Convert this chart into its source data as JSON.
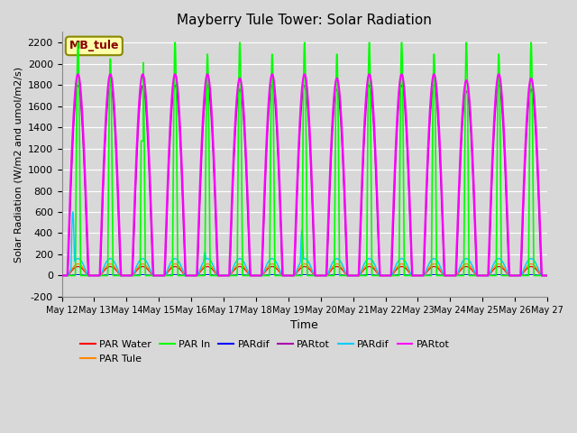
{
  "title": "Mayberry Tule Tower: Solar Radiation",
  "xlabel": "Time",
  "ylabel": "Solar Radiation (W/m2 and umol/m2/s)",
  "ylim": [
    -200,
    2300
  ],
  "yticks": [
    -200,
    0,
    200,
    400,
    600,
    800,
    1000,
    1200,
    1400,
    1600,
    1800,
    2000,
    2200
  ],
  "start_day": 12,
  "end_day": 27,
  "num_days": 15,
  "points_per_day": 288,
  "colors": {
    "par_water": "#ff0000",
    "par_tule": "#ff8800",
    "par_in": "#00ff00",
    "par_dif_blue": "#0000ff",
    "par_tot_purple": "#aa00aa",
    "par_dif_cyan": "#00ccff",
    "par_tot_magenta": "#ff00ff"
  },
  "annotation_text": "MB_tule",
  "annotation_fg": "#880000",
  "annotation_bg": "#ffffaa",
  "annotation_edge": "#888800",
  "fig_bg": "#d8d8d8",
  "plot_bg": "#d8d8d8",
  "grid_color": "#ffffff",
  "legend_ncol": 6,
  "legend_row2_ncol": 1
}
